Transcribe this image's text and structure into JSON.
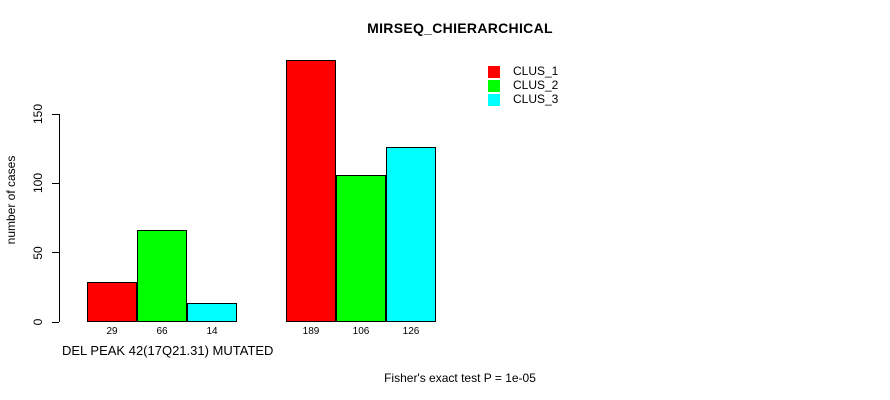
{
  "chart_data": {
    "type": "bar",
    "title": "MIRSEQ_CHIERARCHICAL",
    "xlabel": "DEL PEAK 42(17Q21.31) MUTATED",
    "ylabel": "number of cases",
    "categories": [
      "",
      ""
    ],
    "series": [
      {
        "name": "CLUS_1",
        "color": "#ff0000",
        "values": [
          29,
          189
        ]
      },
      {
        "name": "CLUS_2",
        "color": "#00ff00",
        "values": [
          66,
          106
        ]
      },
      {
        "name": "CLUS_3",
        "color": "#00ffff",
        "values": [
          14,
          126
        ]
      }
    ],
    "bar_value_labels": [
      [
        29,
        66,
        14
      ],
      [
        189,
        106,
        126
      ]
    ],
    "yticks": [
      0,
      50,
      100,
      150
    ],
    "ylim": [
      0,
      189
    ],
    "grid": false,
    "legend_position": "top-right",
    "annotation": "Fisher's exact test P = 1e-05",
    "bar_border_color": "#000000",
    "background_color": "#ffffff"
  }
}
